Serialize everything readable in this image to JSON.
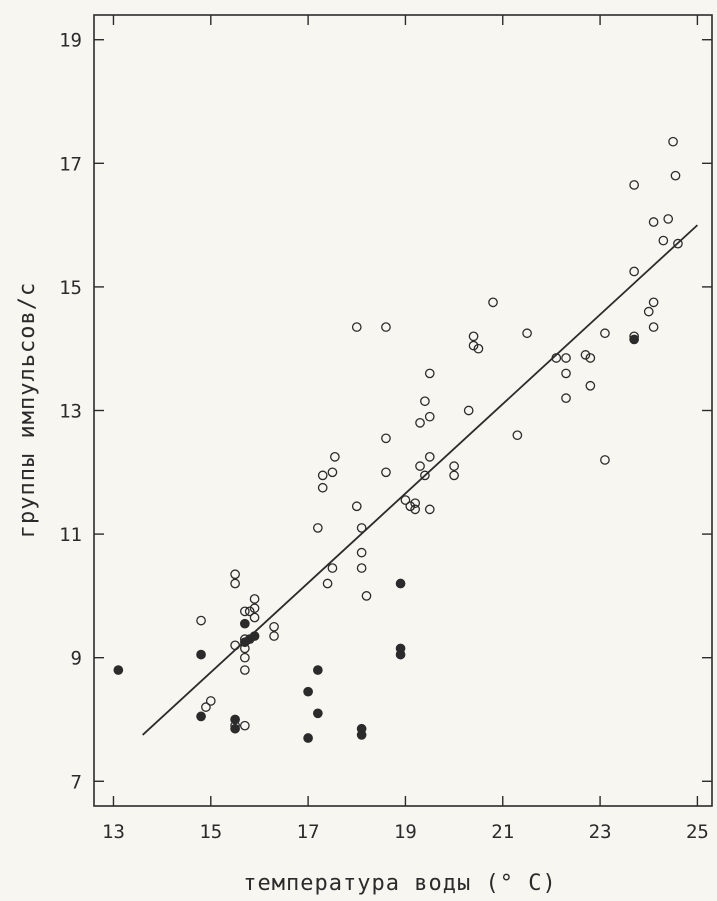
{
  "chart_data": {
    "type": "scatter",
    "xlabel": "температура воды (° C)",
    "ylabel": "группы импульсов/с",
    "xlim": [
      12.6,
      25.3
    ],
    "ylim": [
      6.6,
      19.4
    ],
    "xticks": [
      13,
      15,
      17,
      19,
      21,
      23,
      25
    ],
    "yticks": [
      7,
      9,
      11,
      13,
      15,
      17,
      19
    ],
    "grid": false,
    "series": [
      {
        "marker": "open-circle",
        "points": [
          [
            14.8,
            9.6
          ],
          [
            14.9,
            8.2
          ],
          [
            15.0,
            8.3
          ],
          [
            15.5,
            10.35
          ],
          [
            15.5,
            10.2
          ],
          [
            15.5,
            9.2
          ],
          [
            15.5,
            7.9
          ],
          [
            15.7,
            9.75
          ],
          [
            15.8,
            9.75
          ],
          [
            15.7,
            9.3
          ],
          [
            15.7,
            9.15
          ],
          [
            15.7,
            9.0
          ],
          [
            15.7,
            8.8
          ],
          [
            15.7,
            7.9
          ],
          [
            15.9,
            9.95
          ],
          [
            15.9,
            9.8
          ],
          [
            15.9,
            9.65
          ],
          [
            16.3,
            9.5
          ],
          [
            16.3,
            9.35
          ],
          [
            17.2,
            11.1
          ],
          [
            17.3,
            11.95
          ],
          [
            17.3,
            11.75
          ],
          [
            17.4,
            10.2
          ],
          [
            17.5,
            12.0
          ],
          [
            17.5,
            10.45
          ],
          [
            17.55,
            12.25
          ],
          [
            18.0,
            14.35
          ],
          [
            18.0,
            11.45
          ],
          [
            18.1,
            11.1
          ],
          [
            18.1,
            10.7
          ],
          [
            18.1,
            10.45
          ],
          [
            18.2,
            10.0
          ],
          [
            18.6,
            14.35
          ],
          [
            18.6,
            12.55
          ],
          [
            18.6,
            12.0
          ],
          [
            19.0,
            11.55
          ],
          [
            19.1,
            11.45
          ],
          [
            19.2,
            11.5
          ],
          [
            19.2,
            11.4
          ],
          [
            19.3,
            12.8
          ],
          [
            19.3,
            12.1
          ],
          [
            19.4,
            13.15
          ],
          [
            19.4,
            11.95
          ],
          [
            19.5,
            13.6
          ],
          [
            19.5,
            12.9
          ],
          [
            19.5,
            12.25
          ],
          [
            19.5,
            11.4
          ],
          [
            20.0,
            12.1
          ],
          [
            20.0,
            11.95
          ],
          [
            20.3,
            13.0
          ],
          [
            20.4,
            14.2
          ],
          [
            20.4,
            14.05
          ],
          [
            20.5,
            14.0
          ],
          [
            20.8,
            14.75
          ],
          [
            21.3,
            12.6
          ],
          [
            21.5,
            14.25
          ],
          [
            22.1,
            13.85
          ],
          [
            22.3,
            13.85
          ],
          [
            22.3,
            13.6
          ],
          [
            22.3,
            13.2
          ],
          [
            22.7,
            13.9
          ],
          [
            22.8,
            13.85
          ],
          [
            22.8,
            13.4
          ],
          [
            23.1,
            14.25
          ],
          [
            23.1,
            12.2
          ],
          [
            23.7,
            16.65
          ],
          [
            23.7,
            15.25
          ],
          [
            23.7,
            14.2
          ],
          [
            24.0,
            14.6
          ],
          [
            24.1,
            16.05
          ],
          [
            24.1,
            14.75
          ],
          [
            24.1,
            14.35
          ],
          [
            24.3,
            15.75
          ],
          [
            24.4,
            16.1
          ],
          [
            24.5,
            17.35
          ],
          [
            24.55,
            16.8
          ],
          [
            24.6,
            15.7
          ]
        ]
      },
      {
        "marker": "filled-circle",
        "points": [
          [
            13.1,
            8.8
          ],
          [
            14.8,
            9.05
          ],
          [
            14.8,
            8.05
          ],
          [
            15.5,
            8.0
          ],
          [
            15.5,
            7.85
          ],
          [
            15.7,
            9.55
          ],
          [
            15.7,
            9.25
          ],
          [
            15.8,
            9.3
          ],
          [
            15.9,
            9.35
          ],
          [
            17.0,
            8.45
          ],
          [
            17.0,
            7.7
          ],
          [
            17.2,
            8.8
          ],
          [
            17.2,
            8.1
          ],
          [
            18.1,
            7.85
          ],
          [
            18.1,
            7.75
          ],
          [
            18.9,
            10.2
          ],
          [
            18.9,
            9.15
          ],
          [
            18.9,
            9.05
          ],
          [
            23.7,
            14.15
          ]
        ]
      }
    ],
    "regression_line": {
      "from": [
        13.6,
        7.75
      ],
      "to": [
        25.0,
        16.0
      ]
    }
  }
}
